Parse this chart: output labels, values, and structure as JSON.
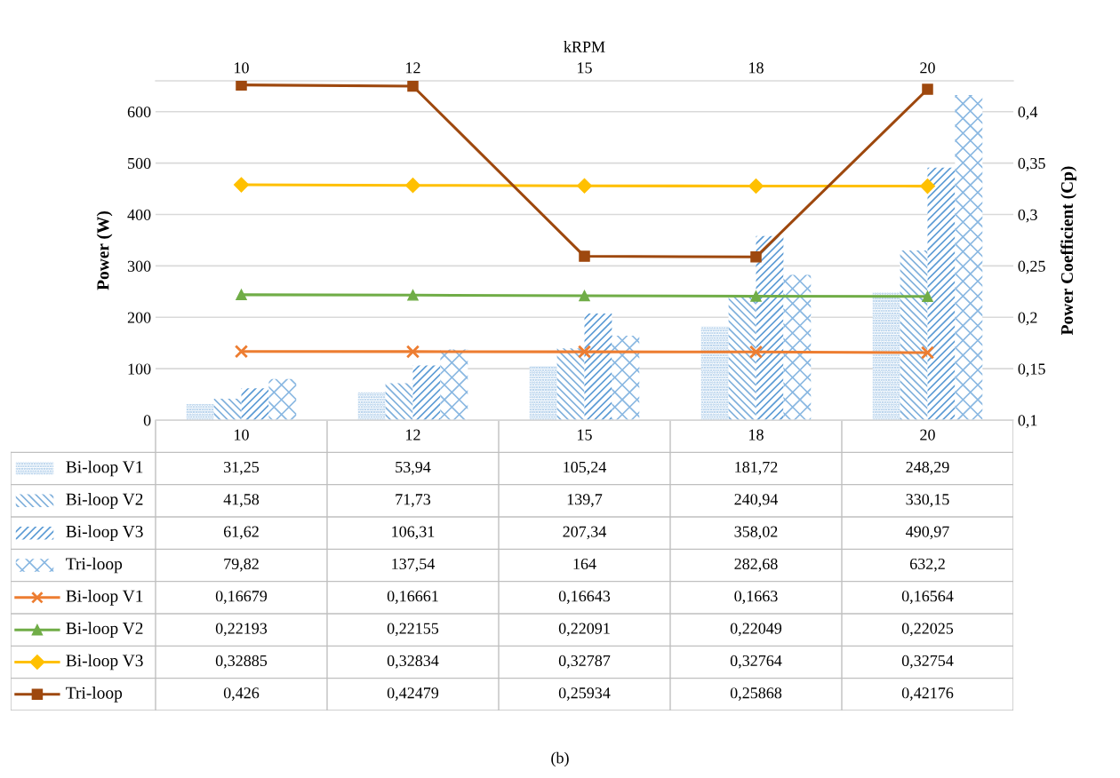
{
  "chart_data": {
    "type": "bar",
    "xlabel": "kRPM",
    "ylabel": "Power (W)",
    "y2label": "Power Coefficient (Cp)",
    "categories": [
      "10",
      "12",
      "15",
      "18",
      "20"
    ],
    "series": [
      {
        "name": "Bi-loop V1",
        "color": "#9dc3e6",
        "values": [
          31.25,
          53.94,
          105.24,
          181.72,
          248.29
        ],
        "value_labels": [
          "31,25",
          "53,94",
          "105,24",
          "181,72",
          "248,29"
        ]
      },
      {
        "name": "Bi-loop V2",
        "color": "#7fb0dc",
        "values": [
          41.58,
          71.73,
          139.7,
          240.94,
          330.15
        ],
        "value_labels": [
          "41,58",
          "71,73",
          "139,7",
          "240,94",
          "330,15"
        ]
      },
      {
        "name": "Bi-loop V3",
        "color": "#5b9bd5",
        "values": [
          61.62,
          106.31,
          207.34,
          358.02,
          490.97
        ],
        "value_labels": [
          "61,62",
          "106,31",
          "207,34",
          "358,02",
          "490,97"
        ]
      },
      {
        "name": "Tri-loop",
        "color": "#8ab8e2",
        "values": [
          79.82,
          137.54,
          164,
          282.68,
          632.2
        ],
        "value_labels": [
          "79,82",
          "137,54",
          "164",
          "282,68",
          "632,2"
        ]
      },
      {
        "name": "Bi-loop V1",
        "type": "line",
        "axis": "y2",
        "marker": "cross",
        "color": "#ed7d31",
        "values": [
          0.16679,
          0.16661,
          0.16643,
          0.1663,
          0.16564
        ],
        "value_labels": [
          "0,16679",
          "0,16661",
          "0,16643",
          "0,1663",
          "0,16564"
        ]
      },
      {
        "name": "Bi-loop V2",
        "type": "line",
        "axis": "y2",
        "marker": "triangle",
        "color": "#70ad47",
        "values": [
          0.22193,
          0.22155,
          0.22091,
          0.22049,
          0.22025
        ],
        "value_labels": [
          "0,22193",
          "0,22155",
          "0,22091",
          "0,22049",
          "0,22025"
        ]
      },
      {
        "name": "Bi-loop V3",
        "type": "line",
        "axis": "y2",
        "marker": "diamond",
        "color": "#ffc000",
        "values": [
          0.32885,
          0.32834,
          0.32787,
          0.32764,
          0.32754
        ],
        "value_labels": [
          "0,32885",
          "0,32834",
          "0,32787",
          "0,32764",
          "0,32754"
        ]
      },
      {
        "name": "Tri-loop",
        "type": "line",
        "axis": "y2",
        "marker": "square",
        "color": "#9e480e",
        "values": [
          0.426,
          0.42479,
          0.25934,
          0.25868,
          0.42176
        ],
        "value_labels": [
          "0,426",
          "0,42479",
          "0,25934",
          "0,25868",
          "0,42176"
        ]
      }
    ],
    "ylim": [
      0,
      660
    ],
    "yticks": [
      0,
      100,
      200,
      300,
      400,
      500,
      600
    ],
    "y2lim": [
      0.1,
      0.43
    ],
    "y2ticks": [
      {
        "value": 0.1,
        "label": "0,1"
      },
      {
        "value": 0.15,
        "label": "0,15"
      },
      {
        "value": 0.2,
        "label": "0,2"
      },
      {
        "value": 0.25,
        "label": "0,25"
      },
      {
        "value": 0.3,
        "label": "0,3"
      },
      {
        "value": 0.35,
        "label": "0,35"
      },
      {
        "value": 0.4,
        "label": "0,4"
      }
    ],
    "grid": "y",
    "legend": "bottom",
    "line_style": "solid",
    "annotations": [
      "(b)"
    ]
  }
}
